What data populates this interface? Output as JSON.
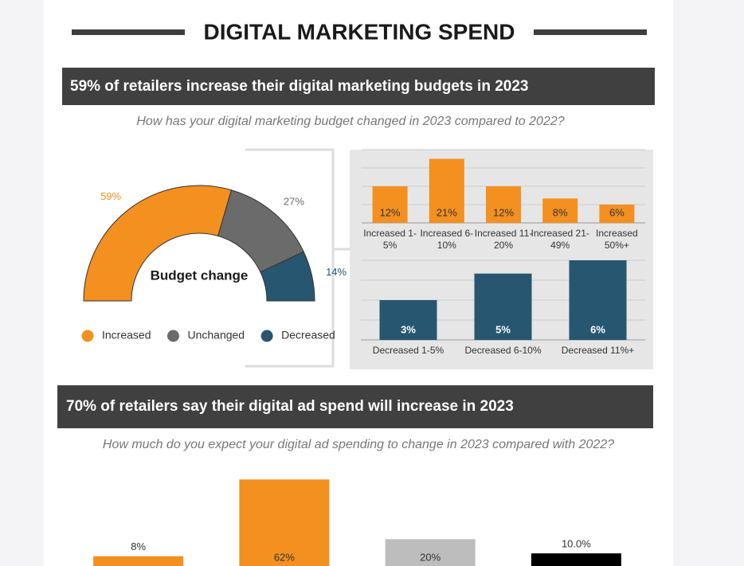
{
  "title": "DIGITAL MARKETING SPEND",
  "chart_data": [
    {
      "type": "half-donut",
      "title": "59% of retailers increase their digital marketing budgets in 2023",
      "subtitle": "How has your digital marketing budget changed in 2023 compared to 2022?",
      "center_label": "Budget change",
      "categories": [
        "Increased",
        "Unchanged",
        "Decreased"
      ],
      "values": [
        59,
        27,
        14
      ],
      "value_labels": [
        "59%",
        "27%",
        "14%"
      ],
      "colors": [
        "#f39020",
        "#6b6b6b",
        "#275670"
      ],
      "legend": "bottom"
    },
    {
      "type": "bar",
      "categories": [
        "Increased 1-5%",
        "Increased 6-10%",
        "Increased 11-20%",
        "Increased 21-49%",
        "Increased 50%+"
      ],
      "values": [
        12,
        21,
        12,
        8,
        6
      ],
      "value_labels": [
        "12%",
        "21%",
        "12%",
        "8%",
        "6%"
      ],
      "color": "#f39020",
      "ylim": [
        0,
        24
      ],
      "yticks": [
        0,
        6,
        12,
        18,
        24
      ],
      "grid": true
    },
    {
      "type": "bar",
      "categories": [
        "Decreased 1-5%",
        "Decreased 6-10%",
        "Decreased 11%+"
      ],
      "values": [
        3,
        5,
        6
      ],
      "value_labels": [
        "3%",
        "5%",
        "6%"
      ],
      "color": "#275670",
      "ylim": [
        0,
        6
      ],
      "yticks": [
        0,
        1.5,
        3,
        4.5,
        6
      ],
      "grid": true
    },
    {
      "type": "bar",
      "title": "70% of retailers say their digital ad spend will increase in 2023",
      "subtitle": "How much do you expect your digital ad spending to change in 2023 compared with 2022?",
      "values": [
        8,
        62,
        20,
        10
      ],
      "value_labels": [
        "8%",
        "62%",
        "20%",
        "10.0%"
      ],
      "colors": [
        "#f39020",
        "#f39020",
        "#bdbdbd",
        "#000000"
      ],
      "ylim": [
        0,
        70
      ]
    }
  ]
}
